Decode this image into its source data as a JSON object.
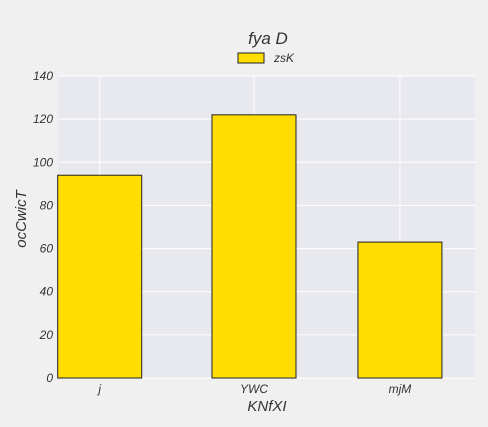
{
  "chart_data": {
    "type": "bar",
    "title": "fya D",
    "xlabel": "KNfXI",
    "ylabel": "ocCwicT",
    "categories": [
      "j",
      "YWC",
      "mjM"
    ],
    "series": [
      {
        "name": "zsK",
        "values": [
          94,
          122,
          63
        ]
      }
    ],
    "ylim": [
      0,
      140
    ],
    "yticks": [
      0,
      20,
      40,
      60,
      80,
      100,
      120,
      140
    ],
    "grid": true,
    "legend": "top-center",
    "colors": {
      "bar": "#ffdd00",
      "bar_edge": "#222222",
      "plot_bg": "#e8e8ef",
      "grid": "#ffffff",
      "page_bg": "#f0f0f0"
    }
  }
}
